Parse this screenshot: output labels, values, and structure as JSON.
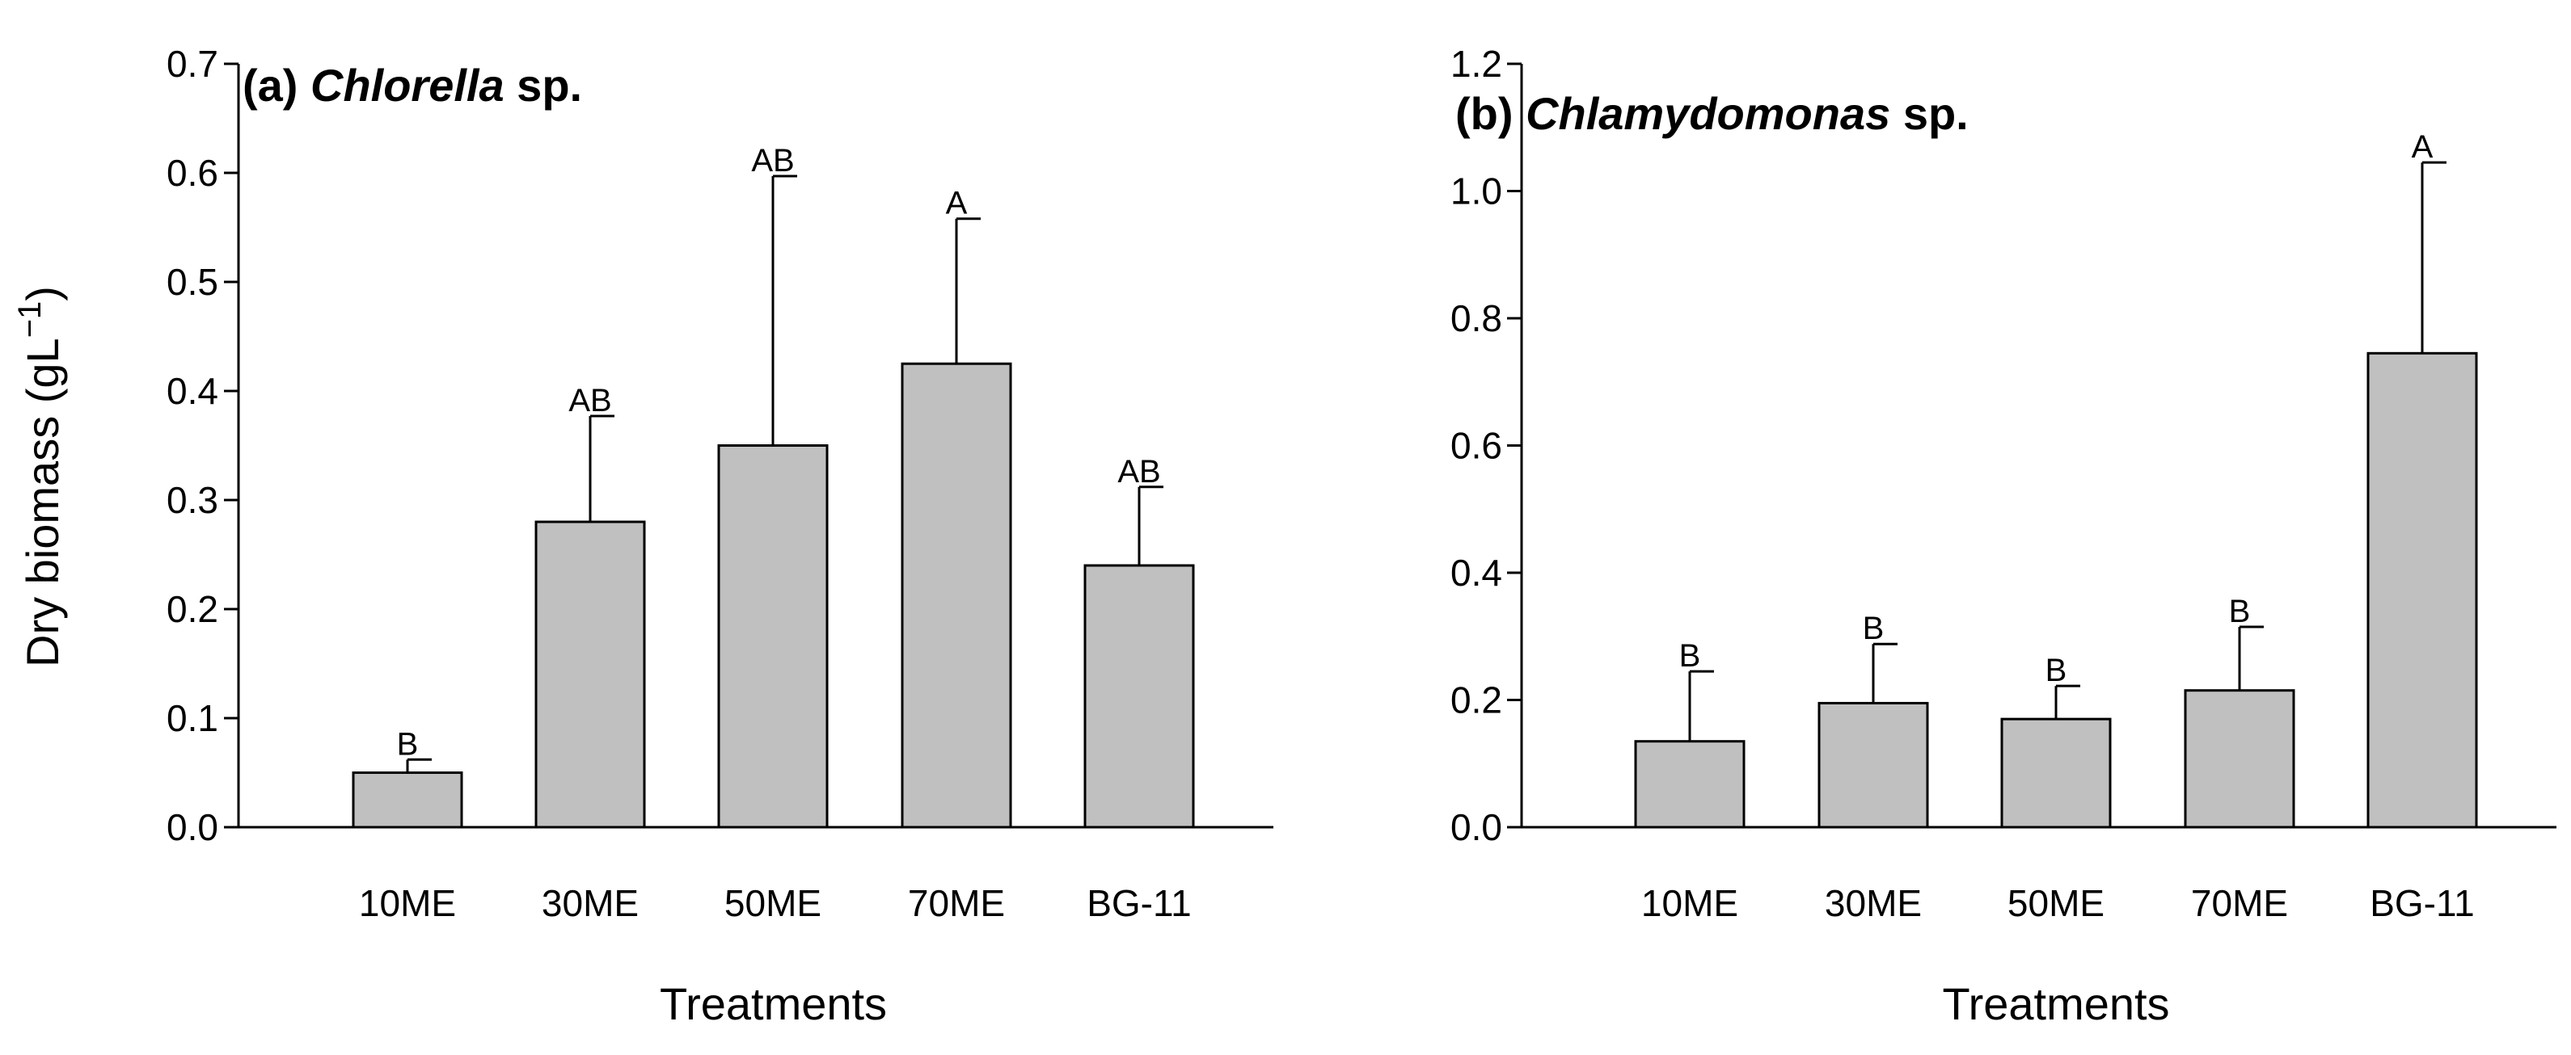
{
  "figure": {
    "ylabel_main": "Dry biomass (gL",
    "ylabel_exp": "−1",
    "ylabel_close": ")"
  },
  "chart_data": [
    {
      "type": "bar",
      "title_prefix": "(a) ",
      "title_species": "Chlorella",
      "title_suffix": " sp.",
      "xlabel": "Treatments",
      "ylabel": "Dry biomass (gL−1)",
      "categories": [
        "10ME",
        "30ME",
        "50ME",
        "70ME",
        "BG-11"
      ],
      "values": [
        0.05,
        0.28,
        0.35,
        0.425,
        0.24
      ],
      "errors": [
        0.012,
        0.097,
        0.247,
        0.133,
        0.072
      ],
      "letters": [
        "B",
        "AB",
        "AB",
        "A",
        "AB"
      ],
      "ylim": [
        0,
        0.7
      ],
      "yticks": [
        "0.0",
        "0.1",
        "0.2",
        "0.3",
        "0.4",
        "0.5",
        "0.6",
        "0.7"
      ],
      "bar_color": "#c0c0c0"
    },
    {
      "type": "bar",
      "title_prefix": "(b) ",
      "title_species": "Chlamydomonas",
      "title_suffix": " sp.",
      "xlabel": "Treatments",
      "ylabel": "",
      "categories": [
        "10ME",
        "30ME",
        "50ME",
        "70ME",
        "BG-11"
      ],
      "values": [
        0.135,
        0.195,
        0.17,
        0.215,
        0.745
      ],
      "errors": [
        0.11,
        0.093,
        0.052,
        0.1,
        0.3
      ],
      "letters": [
        "B",
        "B",
        "B",
        "B",
        "A"
      ],
      "ylim": [
        0,
        1.2
      ],
      "yticks": [
        "0.0",
        "0.2",
        "0.4",
        "0.6",
        "0.8",
        "1.0",
        "1.2"
      ],
      "bar_color": "#c0c0c0"
    }
  ]
}
